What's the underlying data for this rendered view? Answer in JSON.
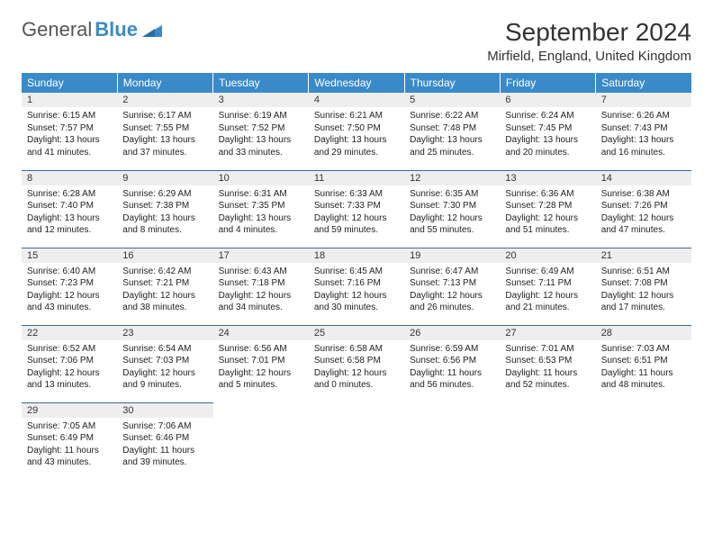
{
  "brand": {
    "name1": "General",
    "name2": "Blue"
  },
  "title": "September 2024",
  "location": "Mirfield, England, United Kingdom",
  "colors": {
    "header_bg": "#3a8ac9",
    "header_text": "#ffffff",
    "daynum_bg": "#eeeeee",
    "row_border": "#3a6a9a",
    "text": "#222222",
    "brand_gray": "#555555",
    "brand_blue": "#3a8ac9"
  },
  "weekdays": [
    "Sunday",
    "Monday",
    "Tuesday",
    "Wednesday",
    "Thursday",
    "Friday",
    "Saturday"
  ],
  "weeks": [
    [
      {
        "n": "1",
        "sr": "6:15 AM",
        "ss": "7:57 PM",
        "dl": "13 hours and 41 minutes."
      },
      {
        "n": "2",
        "sr": "6:17 AM",
        "ss": "7:55 PM",
        "dl": "13 hours and 37 minutes."
      },
      {
        "n": "3",
        "sr": "6:19 AM",
        "ss": "7:52 PM",
        "dl": "13 hours and 33 minutes."
      },
      {
        "n": "4",
        "sr": "6:21 AM",
        "ss": "7:50 PM",
        "dl": "13 hours and 29 minutes."
      },
      {
        "n": "5",
        "sr": "6:22 AM",
        "ss": "7:48 PM",
        "dl": "13 hours and 25 minutes."
      },
      {
        "n": "6",
        "sr": "6:24 AM",
        "ss": "7:45 PM",
        "dl": "13 hours and 20 minutes."
      },
      {
        "n": "7",
        "sr": "6:26 AM",
        "ss": "7:43 PM",
        "dl": "13 hours and 16 minutes."
      }
    ],
    [
      {
        "n": "8",
        "sr": "6:28 AM",
        "ss": "7:40 PM",
        "dl": "13 hours and 12 minutes."
      },
      {
        "n": "9",
        "sr": "6:29 AM",
        "ss": "7:38 PM",
        "dl": "13 hours and 8 minutes."
      },
      {
        "n": "10",
        "sr": "6:31 AM",
        "ss": "7:35 PM",
        "dl": "13 hours and 4 minutes."
      },
      {
        "n": "11",
        "sr": "6:33 AM",
        "ss": "7:33 PM",
        "dl": "12 hours and 59 minutes."
      },
      {
        "n": "12",
        "sr": "6:35 AM",
        "ss": "7:30 PM",
        "dl": "12 hours and 55 minutes."
      },
      {
        "n": "13",
        "sr": "6:36 AM",
        "ss": "7:28 PM",
        "dl": "12 hours and 51 minutes."
      },
      {
        "n": "14",
        "sr": "6:38 AM",
        "ss": "7:26 PM",
        "dl": "12 hours and 47 minutes."
      }
    ],
    [
      {
        "n": "15",
        "sr": "6:40 AM",
        "ss": "7:23 PM",
        "dl": "12 hours and 43 minutes."
      },
      {
        "n": "16",
        "sr": "6:42 AM",
        "ss": "7:21 PM",
        "dl": "12 hours and 38 minutes."
      },
      {
        "n": "17",
        "sr": "6:43 AM",
        "ss": "7:18 PM",
        "dl": "12 hours and 34 minutes."
      },
      {
        "n": "18",
        "sr": "6:45 AM",
        "ss": "7:16 PM",
        "dl": "12 hours and 30 minutes."
      },
      {
        "n": "19",
        "sr": "6:47 AM",
        "ss": "7:13 PM",
        "dl": "12 hours and 26 minutes."
      },
      {
        "n": "20",
        "sr": "6:49 AM",
        "ss": "7:11 PM",
        "dl": "12 hours and 21 minutes."
      },
      {
        "n": "21",
        "sr": "6:51 AM",
        "ss": "7:08 PM",
        "dl": "12 hours and 17 minutes."
      }
    ],
    [
      {
        "n": "22",
        "sr": "6:52 AM",
        "ss": "7:06 PM",
        "dl": "12 hours and 13 minutes."
      },
      {
        "n": "23",
        "sr": "6:54 AM",
        "ss": "7:03 PM",
        "dl": "12 hours and 9 minutes."
      },
      {
        "n": "24",
        "sr": "6:56 AM",
        "ss": "7:01 PM",
        "dl": "12 hours and 5 minutes."
      },
      {
        "n": "25",
        "sr": "6:58 AM",
        "ss": "6:58 PM",
        "dl": "12 hours and 0 minutes."
      },
      {
        "n": "26",
        "sr": "6:59 AM",
        "ss": "6:56 PM",
        "dl": "11 hours and 56 minutes."
      },
      {
        "n": "27",
        "sr": "7:01 AM",
        "ss": "6:53 PM",
        "dl": "11 hours and 52 minutes."
      },
      {
        "n": "28",
        "sr": "7:03 AM",
        "ss": "6:51 PM",
        "dl": "11 hours and 48 minutes."
      }
    ],
    [
      {
        "n": "29",
        "sr": "7:05 AM",
        "ss": "6:49 PM",
        "dl": "11 hours and 43 minutes."
      },
      {
        "n": "30",
        "sr": "7:06 AM",
        "ss": "6:46 PM",
        "dl": "11 hours and 39 minutes."
      },
      null,
      null,
      null,
      null,
      null
    ]
  ],
  "labels": {
    "sunrise": "Sunrise:",
    "sunset": "Sunset:",
    "daylight": "Daylight:"
  }
}
